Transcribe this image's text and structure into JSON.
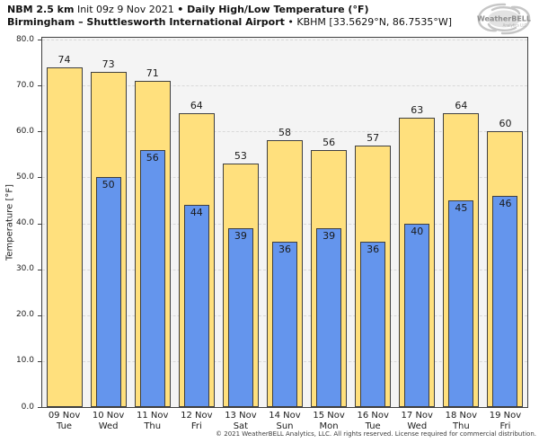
{
  "header": {
    "line1": {
      "model": "NBM 2.5 km",
      "init": " Init 09z 9 Nov 2021 ",
      "product": "• Daily High/Low Temperature (°F)"
    },
    "line2": {
      "station": "Birmingham – Shuttlesworth International Airport",
      "id": " • KBHM [33.5629°N, 86.7535°W]"
    }
  },
  "logo": {
    "brand": "WeatherBELL",
    "sub": "Analytics LLC"
  },
  "footer": {
    "copyright": "© 2021 WeatherBELL Analytics, LLC. All rights reserved. License required for commercial distribution."
  },
  "chart_data": {
    "type": "bar",
    "title": "NBM 2.5 km Init 09z 9 Nov 2021 • Daily High/Low Temperature (°F)",
    "subtitle": "Birmingham – Shuttlesworth International Airport • KBHM [33.5629°N, 86.7535°W]",
    "ylabel": "Temperature [°F]",
    "xlabel": "",
    "ylim": [
      0,
      80
    ],
    "ytick_labels": [
      "0.0",
      "10.0",
      "20.0",
      "30.0",
      "40.0",
      "50.0",
      "60.0",
      "70.0",
      "80.0"
    ],
    "grid": "horizontal-dashed",
    "legend": "none",
    "categories": [
      {
        "date": "09 Nov",
        "day": "Tue"
      },
      {
        "date": "10 Nov",
        "day": "Wed"
      },
      {
        "date": "11 Nov",
        "day": "Thu"
      },
      {
        "date": "12 Nov",
        "day": "Fri"
      },
      {
        "date": "13 Nov",
        "day": "Sat"
      },
      {
        "date": "14 Nov",
        "day": "Sun"
      },
      {
        "date": "15 Nov",
        "day": "Mon"
      },
      {
        "date": "16 Nov",
        "day": "Tue"
      },
      {
        "date": "17 Nov",
        "day": "Wed"
      },
      {
        "date": "18 Nov",
        "day": "Thu"
      },
      {
        "date": "19 Nov",
        "day": "Fri"
      }
    ],
    "series": [
      {
        "name": "Daily High",
        "color": "#FFE07D",
        "values": [
          74,
          73,
          71,
          64,
          53,
          58,
          56,
          57,
          63,
          64,
          60
        ]
      },
      {
        "name": "Daily Low",
        "color": "#6495ED",
        "values": [
          null,
          50,
          56,
          44,
          39,
          36,
          39,
          36,
          40,
          45,
          46
        ]
      }
    ]
  },
  "colors": {
    "figure_bg": "#ffffff",
    "plot_bg": "#f4f4f4",
    "bar_border": "#3f3f3f",
    "grid": "#d9d9d9",
    "frame": "#404040",
    "high_bar": "#FFE07D",
    "low_bar": "#6495ED"
  }
}
